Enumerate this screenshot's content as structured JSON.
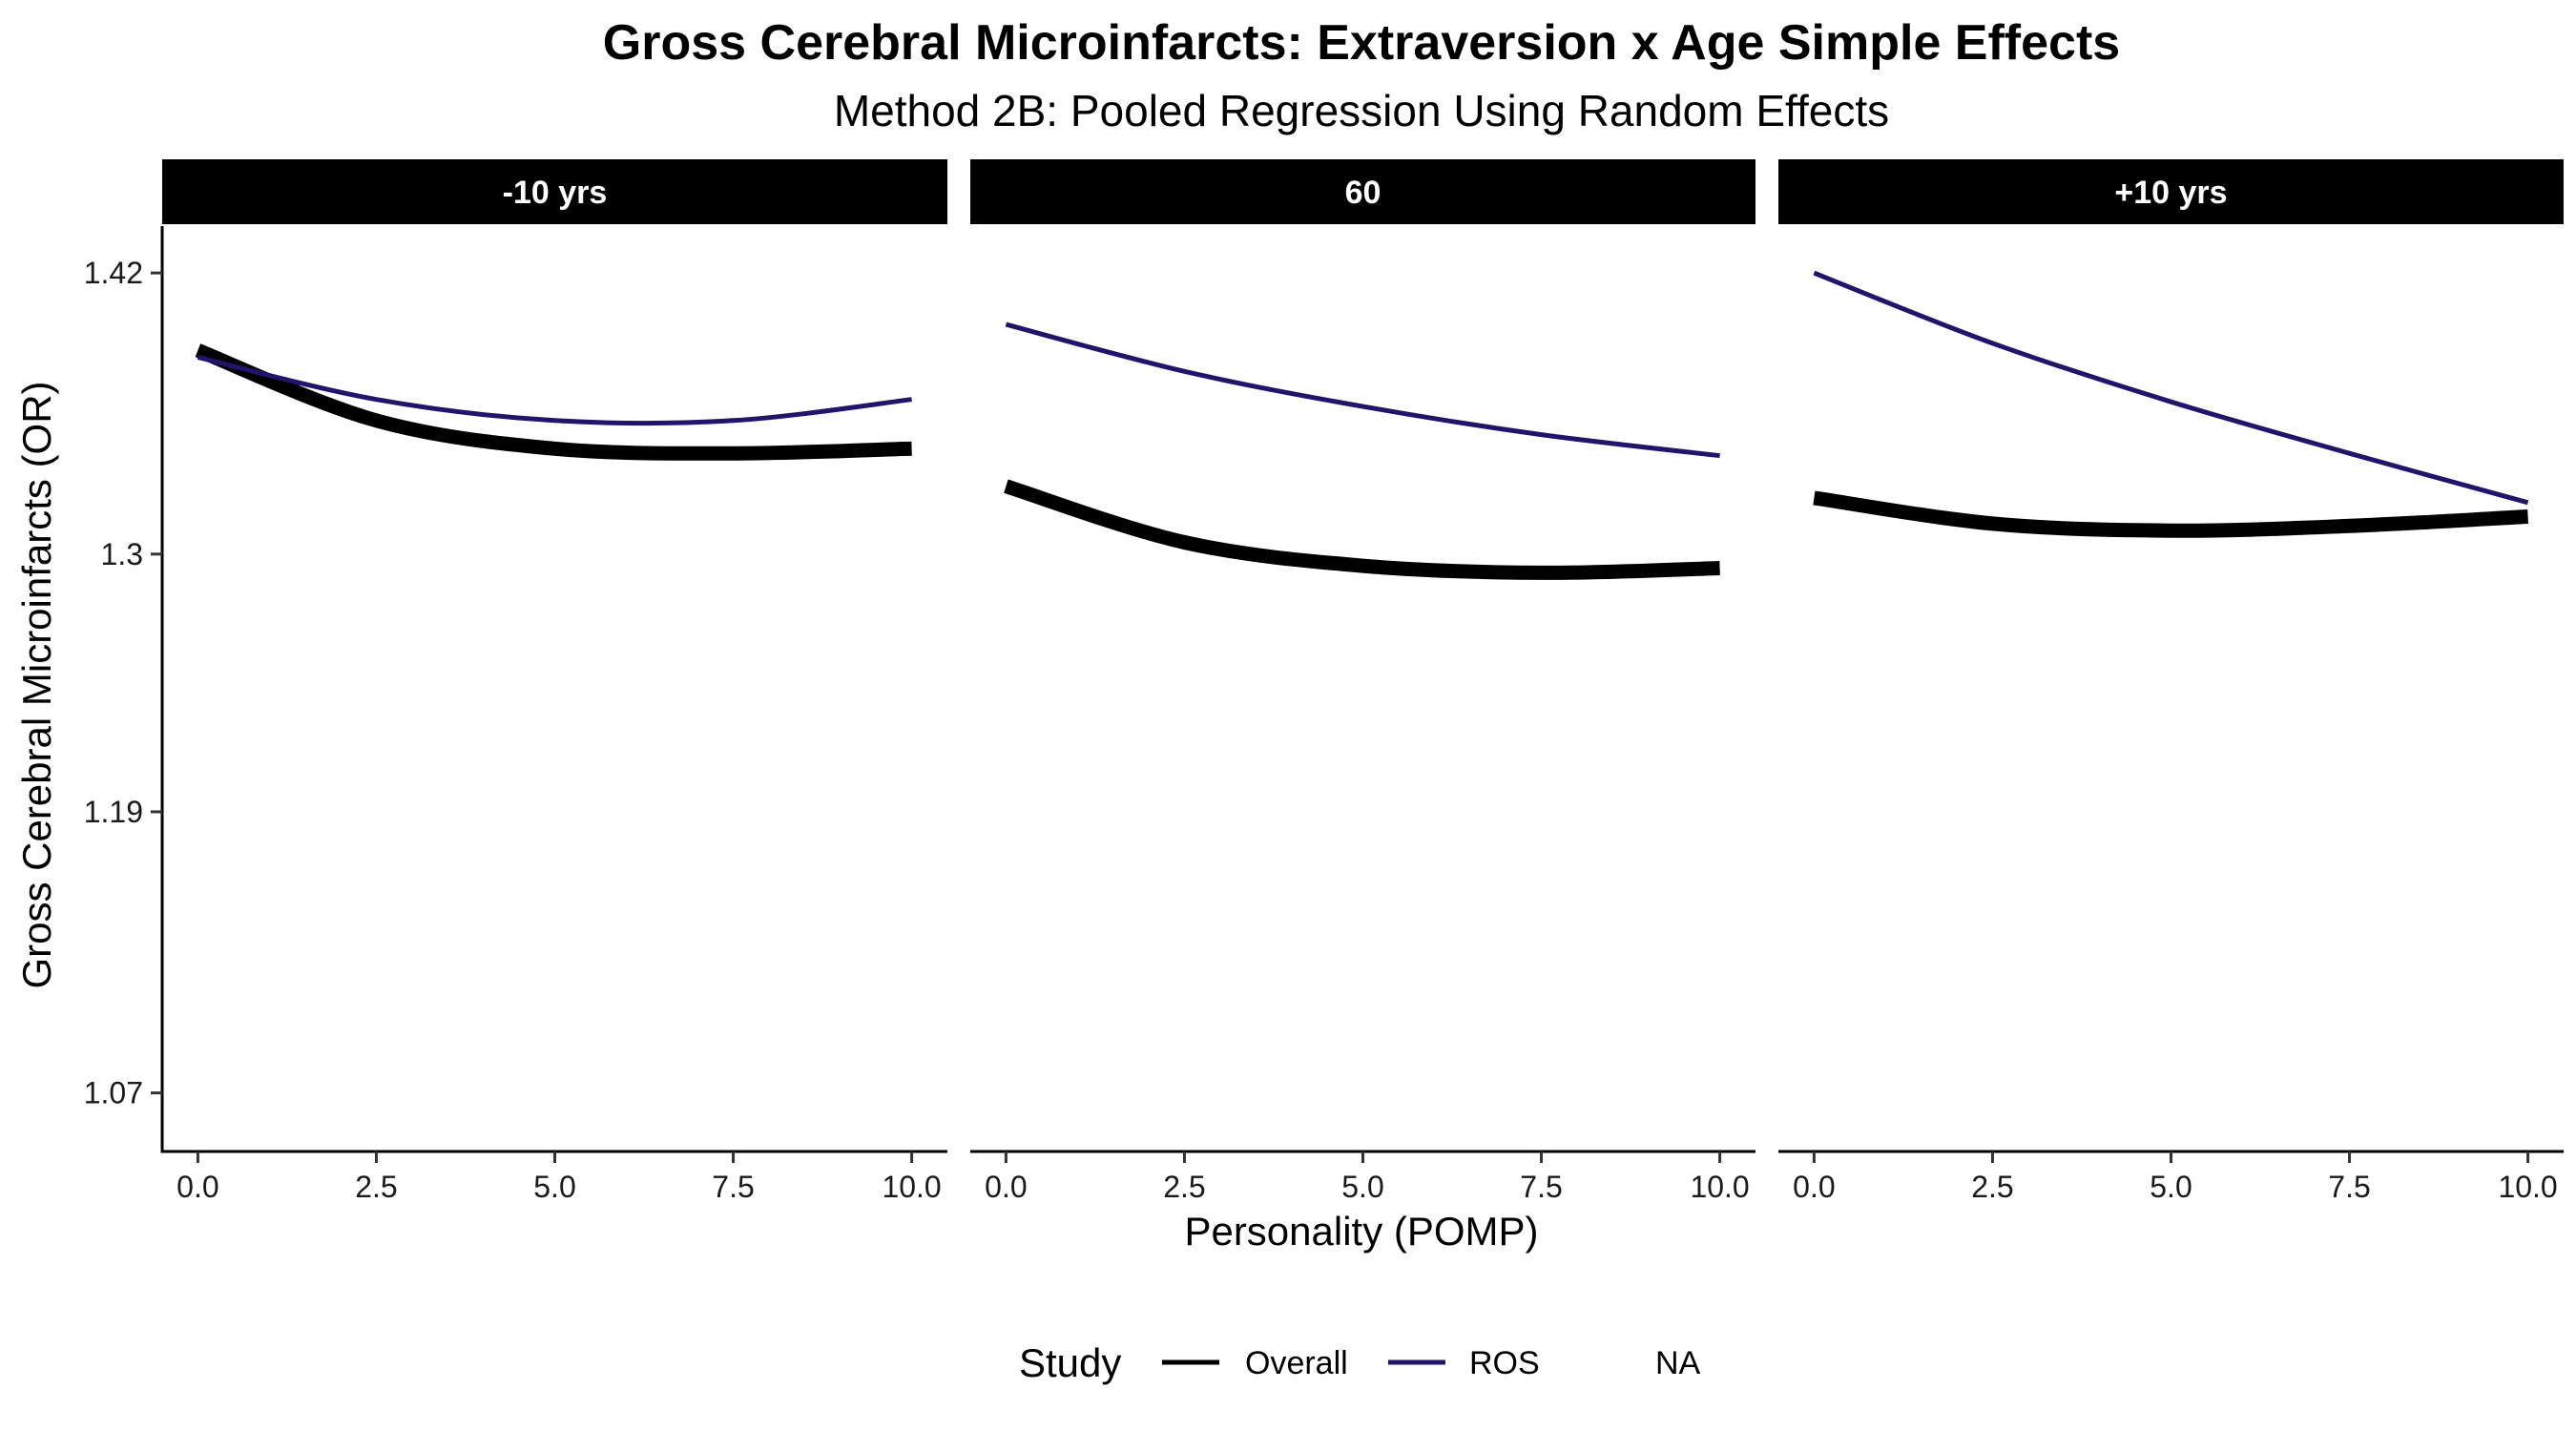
{
  "chart_data": {
    "type": "line",
    "title": "Gross Cerebral Microinfarcts: Extraversion x Age Simple Effects",
    "subtitle": "Method 2B: Pooled Regression Using Random Effects",
    "xlabel": "Personality (POMP)",
    "ylabel": "Gross Cerebral Microinfarcts (OR)",
    "xlim": [
      -0.5,
      10.5
    ],
    "ylim": [
      1.045,
      1.44
    ],
    "x_ticks": [
      0,
      2.5,
      5,
      7.5,
      10
    ],
    "x_tick_labels": [
      "0.0",
      "2.5",
      "5.0",
      "7.5",
      "10.0"
    ],
    "y_ticks": [
      1.07,
      1.19,
      1.3,
      1.42
    ],
    "y_tick_labels": [
      "1.07",
      "1.19",
      "1.3",
      "1.42"
    ],
    "grid": false,
    "legend": {
      "title": "Study",
      "position": "bottom",
      "entries": [
        "Overall",
        "ROS",
        "NA"
      ]
    },
    "colors": {
      "Overall": "#000000",
      "ROS": "#22146b",
      "strip_bg": "#000000"
    },
    "panels": [
      {
        "label": "-10 yrs",
        "series": [
          {
            "name": "Overall",
            "x": [
              0,
              2.5,
              5,
              7.5,
              10
            ],
            "y": [
              1.387,
              1.357,
              1.345,
              1.343,
              1.345
            ]
          },
          {
            "name": "ROS",
            "x": [
              0,
              2.5,
              5,
              7.5,
              10
            ],
            "y": [
              1.384,
              1.366,
              1.357,
              1.357,
              1.366
            ]
          }
        ]
      },
      {
        "label": "60",
        "series": [
          {
            "name": "Overall",
            "x": [
              0,
              2.5,
              5,
              7.5,
              10
            ],
            "y": [
              1.329,
              1.305,
              1.295,
              1.292,
              1.294
            ]
          },
          {
            "name": "ROS",
            "x": [
              0,
              2.5,
              5,
              7.5,
              10
            ],
            "y": [
              1.398,
              1.378,
              1.363,
              1.351,
              1.342
            ]
          }
        ]
      },
      {
        "label": "+10 yrs",
        "series": [
          {
            "name": "Overall",
            "x": [
              0,
              2.5,
              5,
              7.5,
              10
            ],
            "y": [
              1.324,
              1.313,
              1.31,
              1.312,
              1.316
            ]
          },
          {
            "name": "ROS",
            "x": [
              0,
              2.5,
              5,
              7.5,
              10
            ],
            "y": [
              1.42,
              1.39,
              1.365,
              1.343,
              1.322
            ]
          }
        ]
      }
    ]
  }
}
